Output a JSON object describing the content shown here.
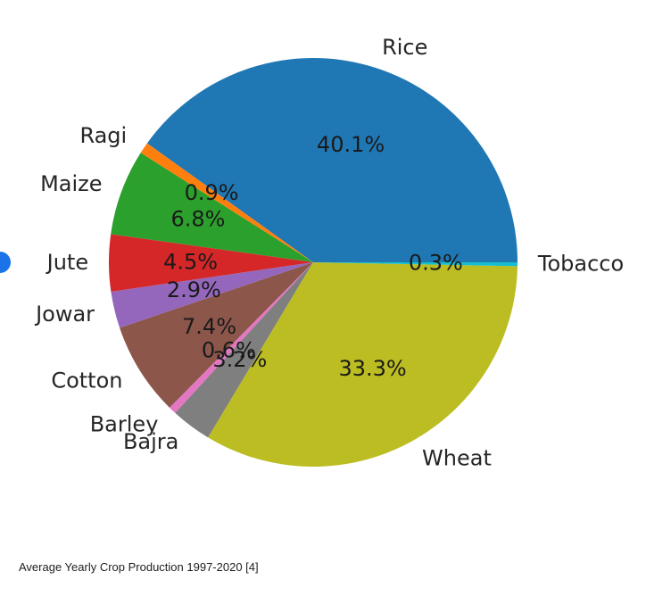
{
  "chart_data": {
    "type": "pie",
    "slices": [
      {
        "label": "Rice",
        "value": 40.1,
        "pct_label": "40.1%",
        "color": "#1f77b4"
      },
      {
        "label": "Ragi",
        "value": 0.9,
        "pct_label": "0.9%",
        "color": "#ff7f0e"
      },
      {
        "label": "Maize",
        "value": 6.8,
        "pct_label": "6.8%",
        "color": "#2ca02c"
      },
      {
        "label": "Jute",
        "value": 4.5,
        "pct_label": "4.5%",
        "color": "#d62728"
      },
      {
        "label": "Jowar",
        "value": 2.9,
        "pct_label": "2.9%",
        "color": "#9467bd"
      },
      {
        "label": "Cotton",
        "value": 7.4,
        "pct_label": "7.4%",
        "color": "#8c564b"
      },
      {
        "label": "Barley",
        "value": 0.6,
        "pct_label": "0.6%",
        "color": "#e377c2"
      },
      {
        "label": "Bajra",
        "value": 3.2,
        "pct_label": "3.2%",
        "color": "#7f7f7f"
      },
      {
        "label": "Wheat",
        "value": 33.3,
        "pct_label": "33.3%",
        "color": "#bcbd22"
      },
      {
        "label": "Tobacco",
        "value": 0.3,
        "pct_label": "0.3%",
        "color": "#17becf"
      }
    ]
  },
  "caption": "Average Yearly Crop Production 1997-2020 [4]"
}
